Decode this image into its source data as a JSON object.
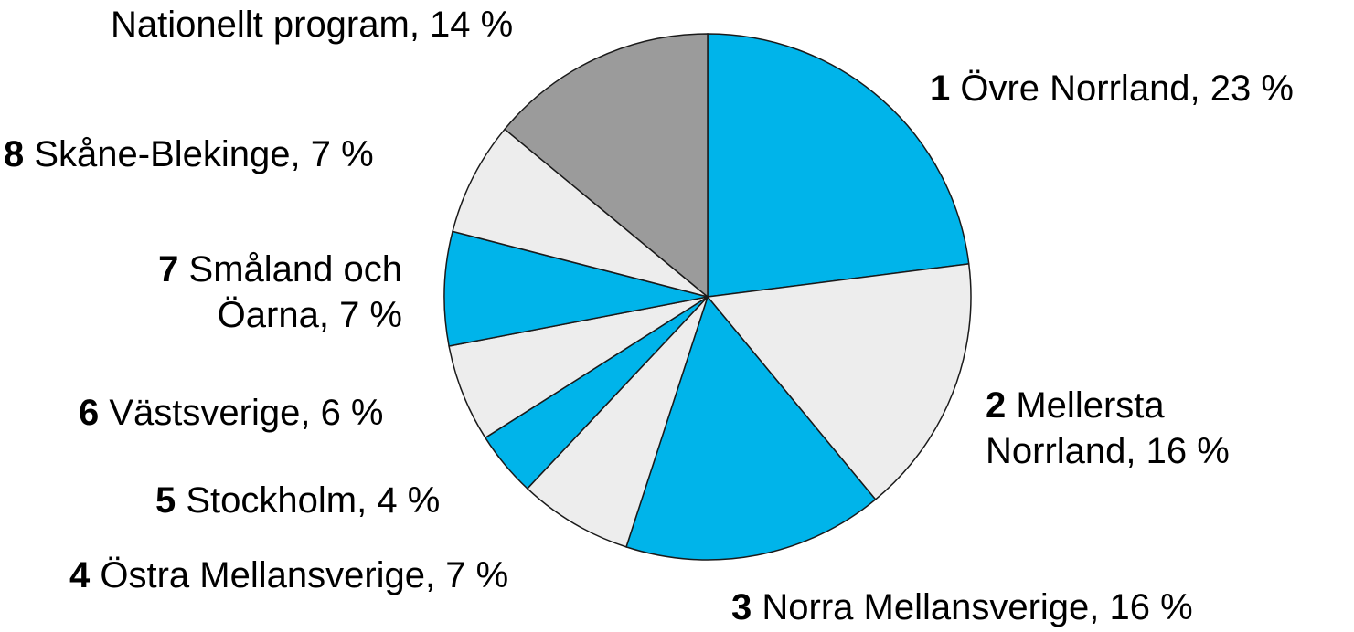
{
  "chart_data": {
    "type": "pie",
    "start_angle_deg": 90,
    "direction": "clockwise",
    "slices": [
      {
        "number": "1",
        "name": "Övre Norrland",
        "value": 23,
        "display": "23 %",
        "color": "#00b4ea",
        "label_lines": [
          [
            "1",
            "Övre Norrland, 23 %"
          ]
        ]
      },
      {
        "number": "2",
        "name": "Mellersta Norrland",
        "value": 16,
        "display": "16 %",
        "color": "#ededed",
        "label_lines": [
          [
            "2",
            "Mellersta"
          ],
          [
            "",
            "Norrland, 16 %"
          ]
        ]
      },
      {
        "number": "3",
        "name": "Norra Mellansverige",
        "value": 16,
        "display": "16 %",
        "color": "#00b4ea",
        "label_lines": [
          [
            "3",
            "Norra Mellansverige, 16 %"
          ]
        ]
      },
      {
        "number": "4",
        "name": "Östra Mellansverige",
        "value": 7,
        "display": "7 %",
        "color": "#ededed",
        "label_lines": [
          [
            "4",
            "Östra Mellansverige, 7 %"
          ]
        ]
      },
      {
        "number": "5",
        "name": "Stockholm",
        "value": 4,
        "display": "4 %",
        "color": "#00b4ea",
        "label_lines": [
          [
            "5",
            "Stockholm, 4 %"
          ]
        ]
      },
      {
        "number": "6",
        "name": "Västsverige",
        "value": 6,
        "display": "6 %",
        "color": "#ededed",
        "label_lines": [
          [
            "6",
            "Västsverige, 6 %"
          ]
        ]
      },
      {
        "number": "7",
        "name": "Småland och Öarna",
        "value": 7,
        "display": "7 %",
        "color": "#00b4ea",
        "label_lines": [
          [
            "7",
            "Småland och"
          ],
          [
            "",
            "Öarna, 7 %"
          ]
        ]
      },
      {
        "number": "8",
        "name": "Skåne-Blekinge",
        "value": 7,
        "display": "7 %",
        "color": "#ededed",
        "label_lines": [
          [
            "8",
            "Skåne-Blekinge, 7 %"
          ]
        ]
      },
      {
        "number": "",
        "name": "Nationellt program",
        "value": 14,
        "display": "14 %",
        "color": "#9b9b9b",
        "label_lines": [
          [
            "",
            "Nationellt program, 14 %"
          ]
        ]
      }
    ]
  }
}
